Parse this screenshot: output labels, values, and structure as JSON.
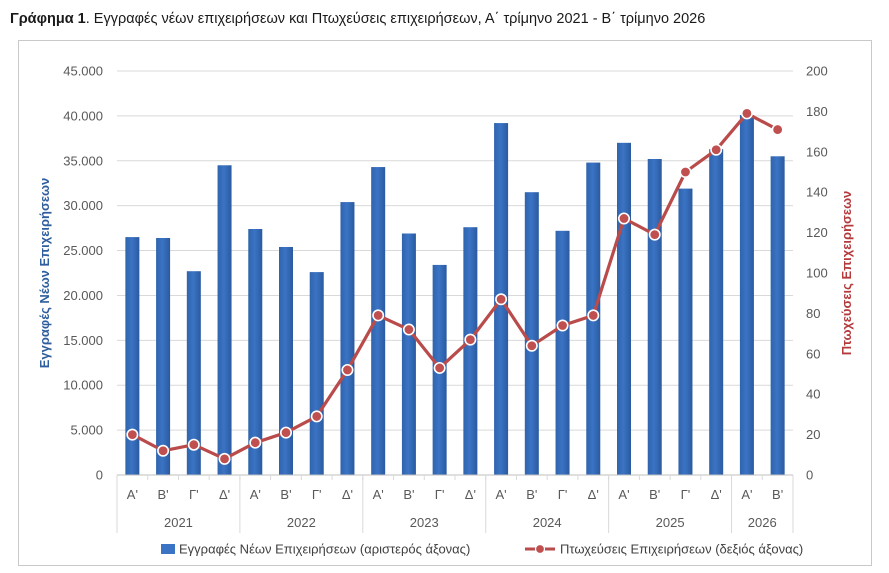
{
  "caption": {
    "bold": "Γράφημα 1",
    "rest": ". Εγγραφές νέων επιχειρήσεων και Πτωχεύσεις επιχειρήσεων, Α΄ τρίμηνο 2021 - Β΄ τρίμηνο 2026"
  },
  "chart_data": {
    "type": "bar",
    "quarters": [
      "Α'",
      "Β'",
      "Γ'",
      "Δ'",
      "Α'",
      "Β'",
      "Γ'",
      "Δ'",
      "Α'",
      "Β'",
      "Γ'",
      "Δ'",
      "Α'",
      "Β'",
      "Γ'",
      "Δ'",
      "Α'",
      "Β'",
      "Γ'",
      "Δ'",
      "Α'",
      "Β'"
    ],
    "years": [
      {
        "label": "2021",
        "count": 4
      },
      {
        "label": "2022",
        "count": 4
      },
      {
        "label": "2023",
        "count": 4
      },
      {
        "label": "2024",
        "count": 4
      },
      {
        "label": "2025",
        "count": 4
      },
      {
        "label": "2026",
        "count": 2
      }
    ],
    "series": [
      {
        "name": "Εγγραφές Νέων Επιχειρήσεων (αριστερός άξονας)",
        "type": "bar",
        "axis": "left",
        "color": "#3b74c4",
        "values": [
          26500,
          26400,
          22700,
          34500,
          27400,
          25400,
          22600,
          30400,
          34300,
          26900,
          23400,
          27600,
          39200,
          31500,
          27200,
          34800,
          37000,
          35200,
          31900,
          36300,
          40100,
          35500
        ]
      },
      {
        "name": "Πτωχεύσεις Επιχειρήσεων (δεξιός άξονας)",
        "type": "line",
        "axis": "right",
        "color": "#b94b4b",
        "values": [
          20,
          12,
          15,
          8,
          16,
          21,
          29,
          52,
          79,
          72,
          53,
          67,
          87,
          64,
          74,
          79,
          127,
          119,
          150,
          161,
          179,
          171
        ]
      }
    ],
    "left_axis": {
      "label": "Εγγραφές Νέων Επιχειρήσεων",
      "ylim": [
        0,
        45000
      ],
      "ticks": [
        "0",
        "5.000",
        "10.000",
        "15.000",
        "20.000",
        "25.000",
        "30.000",
        "35.000",
        "40.000",
        "45.000"
      ]
    },
    "right_axis": {
      "label": "Πτωχεύσεις Επιχειρήσεων",
      "ylim": [
        0,
        200
      ],
      "ticks": [
        "0",
        "20",
        "40",
        "60",
        "80",
        "100",
        "120",
        "140",
        "160",
        "180",
        "200"
      ]
    },
    "grid": true,
    "legend_position": "bottom"
  }
}
